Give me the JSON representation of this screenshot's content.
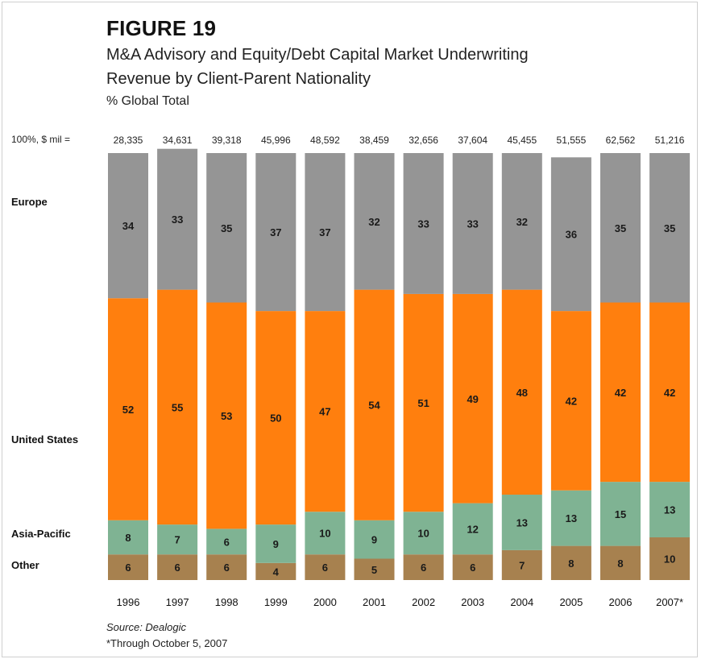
{
  "header": {
    "figure_number": "FIGURE 19",
    "subtitle_line1": "M&A Advisory and Equity/Debt Capital Market Underwriting",
    "subtitle_line2": "Revenue by Client-Parent Nationality",
    "unit_label": "% Global Total",
    "total_label": "100%, $ mil ="
  },
  "row_labels": {
    "europe": "Europe",
    "us": "United States",
    "asia": "Asia-Pacific",
    "other": "Other"
  },
  "footer": {
    "source": "Source: Dealogic",
    "footnote": "*Through October 5, 2007"
  },
  "colors": {
    "other": "#a7814f",
    "asia_pacific": "#7fb393",
    "united_states": "#ff7f0e",
    "europe": "#959595"
  },
  "chart_data": {
    "type": "bar",
    "stacked": true,
    "normalized_percent": true,
    "categories": [
      "1996",
      "1997",
      "1998",
      "1999",
      "2000",
      "2001",
      "2002",
      "2003",
      "2004",
      "2005",
      "2006",
      "2007*"
    ],
    "totals_usd_mil": [
      "28,335",
      "34,631",
      "39,318",
      "45,996",
      "48,592",
      "38,459",
      "32,656",
      "37,604",
      "45,455",
      "51,555",
      "62,562",
      "51,216"
    ],
    "series": [
      {
        "name": "Other",
        "values": [
          6,
          6,
          6,
          4,
          6,
          5,
          6,
          6,
          7,
          8,
          8,
          10
        ]
      },
      {
        "name": "Asia-Pacific",
        "values": [
          8,
          7,
          6,
          9,
          10,
          9,
          10,
          12,
          13,
          13,
          15,
          13
        ]
      },
      {
        "name": "United States",
        "values": [
          52,
          55,
          53,
          50,
          47,
          54,
          51,
          49,
          48,
          42,
          42,
          42
        ]
      },
      {
        "name": "Europe",
        "values": [
          34,
          33,
          35,
          37,
          37,
          32,
          33,
          33,
          32,
          36,
          35,
          35
        ]
      }
    ],
    "ylim": [
      0,
      100
    ]
  }
}
